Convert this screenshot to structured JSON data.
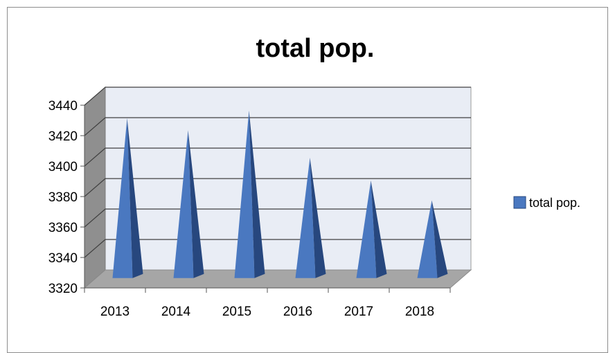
{
  "chart_data": {
    "type": "bar",
    "title": "total pop.",
    "categories": [
      "2013",
      "2014",
      "2015",
      "2016",
      "2017",
      "2018"
    ],
    "series": [
      {
        "name": "total pop.",
        "values": [
          3425,
          3417,
          3430,
          3399,
          3384,
          3371
        ]
      }
    ],
    "ylim": [
      3320,
      3440
    ],
    "yticks": [
      "3320",
      "3340",
      "3360",
      "3380",
      "3400",
      "3420",
      "3440"
    ],
    "grid": true,
    "legend": "right",
    "bar_shape": "pyramid-3d",
    "colors": {
      "bar_front": "#4a78c0",
      "bar_side": "#27477e",
      "wall": "#e9edf5",
      "side_wall": "#8f8f8f",
      "floor": "#a6a6a6",
      "grid": "#404040"
    }
  }
}
